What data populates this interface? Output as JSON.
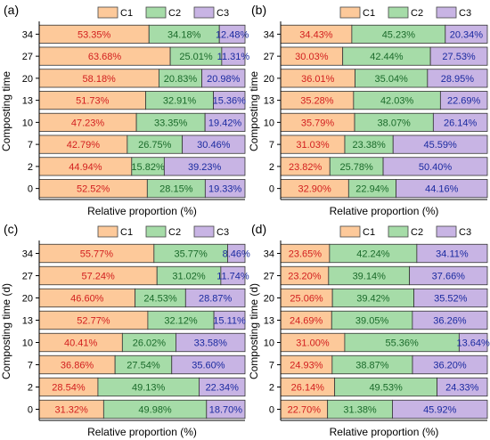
{
  "colors": {
    "C1": "#fdc99a",
    "C2": "#a6dca8",
    "C3": "#c8b4e4",
    "C1_text": "#d21e1e",
    "C2_text": "#1a6a2a",
    "C3_text": "#1a2aa0"
  },
  "chart_data": [
    {
      "type": "bar",
      "orientation": "horizontal",
      "stacked": true,
      "panel_label": "(a)",
      "xlabel": "Relative proportion (%)",
      "ylabel": "Composting time",
      "categories": [
        "0",
        "2",
        "7",
        "10",
        "13",
        "20",
        "27",
        "34"
      ],
      "legend": [
        "C1",
        "C2",
        "C3"
      ],
      "series": [
        {
          "name": "C1",
          "values": [
            52.52,
            44.94,
            42.79,
            47.23,
            51.73,
            58.18,
            63.68,
            53.35
          ],
          "labels": [
            "52.52%",
            "44.94%",
            "42.79%",
            "47.23%",
            "51.73%",
            "58.18%",
            "63.68%",
            "53.35%"
          ]
        },
        {
          "name": "C2",
          "values": [
            28.15,
            15.82,
            26.75,
            33.35,
            32.91,
            20.83,
            25.01,
            34.18
          ],
          "labels": [
            "28.15%",
            "15.82%",
            "26.75%",
            "33.35%",
            "32.91%",
            "20.83%",
            "25.01%",
            "34.18%"
          ]
        },
        {
          "name": "C3",
          "values": [
            19.33,
            39.23,
            30.46,
            19.42,
            15.36,
            20.98,
            11.31,
            12.48
          ],
          "labels": [
            "19.33%",
            "39.23%",
            "30.46%",
            "19.42%",
            "15.36%",
            "20.98%",
            "11.31%",
            "12.48%"
          ]
        }
      ]
    },
    {
      "type": "bar",
      "orientation": "horizontal",
      "stacked": true,
      "panel_label": "(b)",
      "xlabel": "Relative proportion (%)",
      "ylabel": "Composting time",
      "categories": [
        "0",
        "2",
        "7",
        "10",
        "13",
        "20",
        "27",
        "34"
      ],
      "legend": [
        "C1",
        "C2",
        "C3"
      ],
      "series": [
        {
          "name": "C1",
          "values": [
            32.9,
            23.82,
            31.03,
            35.79,
            35.28,
            36.01,
            30.03,
            34.43
          ],
          "labels": [
            "32.90%",
            "23.82%",
            "31.03%",
            "35.79%",
            "35.28%",
            "36.01%",
            "30.03%",
            "34.43%"
          ]
        },
        {
          "name": "C2",
          "values": [
            22.94,
            25.78,
            23.38,
            38.07,
            42.03,
            35.04,
            42.44,
            45.23
          ],
          "labels": [
            "22.94%",
            "25.78%",
            "23.38%",
            "38.07%",
            "42.03%",
            "35.04%",
            "42.44%",
            "45.23%"
          ]
        },
        {
          "name": "C3",
          "values": [
            44.16,
            50.4,
            45.59,
            26.14,
            22.69,
            28.95,
            27.53,
            20.34
          ],
          "labels": [
            "44.16%",
            "50.40%",
            "45.59%",
            "26.14%",
            "22.69%",
            "28.95%",
            "27.53%",
            "20.34%"
          ]
        }
      ]
    },
    {
      "type": "bar",
      "orientation": "horizontal",
      "stacked": true,
      "panel_label": "(c)",
      "xlabel": "Relative proportion (%)",
      "ylabel": "Composting time (d)",
      "categories": [
        "0",
        "2",
        "7",
        "10",
        "13",
        "20",
        "27",
        "34"
      ],
      "legend": [
        "C1",
        "C2",
        "C3"
      ],
      "series": [
        {
          "name": "C1",
          "values": [
            31.32,
            28.54,
            36.86,
            40.41,
            52.77,
            46.6,
            57.24,
            55.77
          ],
          "labels": [
            "31.32%",
            "28.54%",
            "36.86%",
            "40.41%",
            "52.77%",
            "46.60%",
            "57.24%",
            "55.77%"
          ]
        },
        {
          "name": "C2",
          "values": [
            49.98,
            49.13,
            27.54,
            26.02,
            32.12,
            24.53,
            31.02,
            35.77
          ],
          "labels": [
            "49.98%",
            "49.13%",
            "27.54%",
            "26.02%",
            "32.12%",
            "24.53%",
            "31.02%",
            "35.77%"
          ]
        },
        {
          "name": "C3",
          "values": [
            18.7,
            22.34,
            35.6,
            33.58,
            15.11,
            28.87,
            11.74,
            8.46
          ],
          "labels": [
            "18.70%",
            "22.34%",
            "35.60%",
            "33.58%",
            "15.11%",
            "28.87%",
            "11.74%",
            "8.46%"
          ]
        }
      ]
    },
    {
      "type": "bar",
      "orientation": "horizontal",
      "stacked": true,
      "panel_label": "(d)",
      "xlabel": "Relative proportion (%)",
      "ylabel": "Composting time (d)",
      "categories": [
        "0",
        "2",
        "7",
        "10",
        "13",
        "20",
        "27",
        "34"
      ],
      "legend": [
        "C1",
        "C2",
        "C3"
      ],
      "series": [
        {
          "name": "C1",
          "values": [
            22.7,
            26.14,
            24.93,
            31.0,
            24.69,
            25.06,
            23.2,
            23.65
          ],
          "labels": [
            "22.70%",
            "26.14%",
            "24.93%",
            "31.00%",
            "24.69%",
            "25.06%",
            "23.20%",
            "23.65%"
          ]
        },
        {
          "name": "C2",
          "values": [
            31.38,
            49.53,
            38.87,
            55.36,
            39.05,
            39.42,
            39.14,
            42.24
          ],
          "labels": [
            "31.38%",
            "49.53%",
            "38.87%",
            "55.36%",
            "39.05%",
            "39.42%",
            "39.14%",
            "42.24%"
          ]
        },
        {
          "name": "C3",
          "values": [
            45.92,
            24.33,
            36.2,
            13.64,
            36.26,
            35.52,
            37.66,
            34.11
          ],
          "labels": [
            "45.92%",
            "24.33%",
            "36.20%",
            "13.64%",
            "36.26%",
            "35.52%",
            "37.66%",
            "34.11%"
          ]
        }
      ]
    }
  ]
}
